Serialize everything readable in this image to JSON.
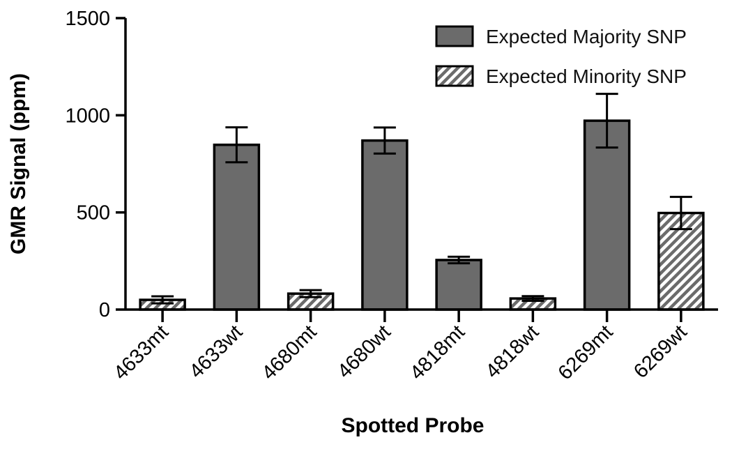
{
  "chart_data": {
    "type": "bar",
    "title": "",
    "xlabel": "Spotted Probe",
    "ylabel": "GMR Signal (ppm)",
    "ylim": [
      0,
      1500
    ],
    "yticks": [
      0,
      500,
      1000,
      1500
    ],
    "grid": false,
    "legend_position": "top-right",
    "colors": {
      "majority": "#6b6b6b",
      "hatch": "#6b6b6b",
      "stroke": "#000000"
    },
    "series": [
      {
        "name": "Expected Majority SNP",
        "fill": "solid"
      },
      {
        "name": "Expected Minority SNP",
        "fill": "hatched"
      }
    ],
    "bars": [
      {
        "category": "4633mt",
        "series": 1,
        "value": 50,
        "error": 18
      },
      {
        "category": "4633wt",
        "series": 0,
        "value": 848,
        "error": 90
      },
      {
        "category": "4680mt",
        "series": 1,
        "value": 82,
        "error": 18
      },
      {
        "category": "4680wt",
        "series": 0,
        "value": 870,
        "error": 67
      },
      {
        "category": "4818mt",
        "series": 0,
        "value": 255,
        "error": 17
      },
      {
        "category": "4818wt",
        "series": 1,
        "value": 57,
        "error": 12
      },
      {
        "category": "6269mt",
        "series": 0,
        "value": 972,
        "error": 138
      },
      {
        "category": "6269wt",
        "series": 1,
        "value": 497,
        "error": 83
      }
    ]
  }
}
